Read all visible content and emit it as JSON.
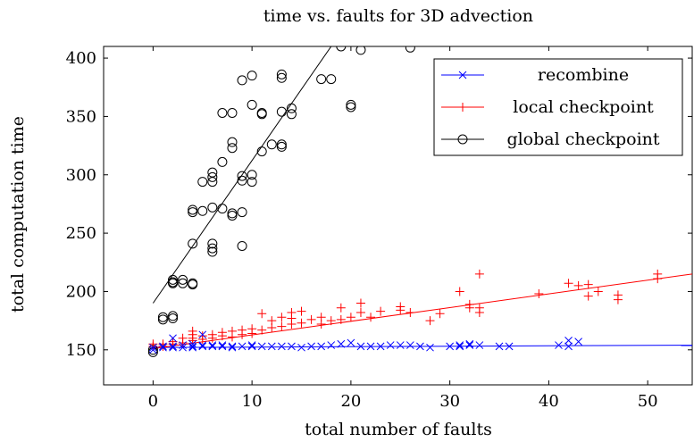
{
  "chart_data": {
    "type": "scatter",
    "title": "time vs. faults for 3D advection",
    "xlabel": "total number of faults",
    "ylabel": "total computation time",
    "xlim": [
      -5,
      54.5
    ],
    "ylim": [
      120,
      410
    ],
    "xticks": [
      0,
      10,
      20,
      30,
      40,
      50
    ],
    "yticks": [
      150,
      200,
      250,
      300,
      350,
      400
    ],
    "grid": false,
    "legend_position": "top-right",
    "series": [
      {
        "name": "recombine",
        "marker": "x",
        "color": "#0000ff",
        "points": [
          [
            0,
            152
          ],
          [
            0,
            150
          ],
          [
            1,
            153
          ],
          [
            1,
            152
          ],
          [
            2,
            160
          ],
          [
            2,
            153
          ],
          [
            2,
            152
          ],
          [
            3,
            154
          ],
          [
            3,
            152
          ],
          [
            4,
            155
          ],
          [
            4,
            153
          ],
          [
            4,
            152
          ],
          [
            5,
            163
          ],
          [
            5,
            154
          ],
          [
            5,
            153
          ],
          [
            6,
            154
          ],
          [
            6,
            153
          ],
          [
            7,
            154
          ],
          [
            7,
            153
          ],
          [
            8,
            153
          ],
          [
            8,
            152
          ],
          [
            9,
            153
          ],
          [
            10,
            154
          ],
          [
            10,
            153
          ],
          [
            11,
            153
          ],
          [
            12,
            153
          ],
          [
            13,
            153
          ],
          [
            14,
            153
          ],
          [
            15,
            152
          ],
          [
            16,
            153
          ],
          [
            17,
            153
          ],
          [
            18,
            154
          ],
          [
            19,
            155
          ],
          [
            20,
            156
          ],
          [
            21,
            153
          ],
          [
            22,
            153
          ],
          [
            23,
            153
          ],
          [
            24,
            154
          ],
          [
            25,
            154
          ],
          [
            26,
            154
          ],
          [
            27,
            153
          ],
          [
            28,
            152
          ],
          [
            30,
            153
          ],
          [
            31,
            154
          ],
          [
            31,
            153
          ],
          [
            32,
            155
          ],
          [
            32,
            154
          ],
          [
            33,
            154
          ],
          [
            35,
            153
          ],
          [
            36,
            153
          ],
          [
            41,
            154
          ],
          [
            42,
            158
          ],
          [
            42,
            153
          ],
          [
            43,
            157
          ]
        ],
        "trend": [
          [
            0,
            152
          ],
          [
            54.5,
            154
          ]
        ]
      },
      {
        "name": "local checkpoint",
        "marker": "+",
        "color": "#ff0000",
        "points": [
          [
            0,
            155
          ],
          [
            0,
            153
          ],
          [
            1,
            155
          ],
          [
            1,
            153
          ],
          [
            2,
            157
          ],
          [
            2,
            155
          ],
          [
            3,
            160
          ],
          [
            3,
            156
          ],
          [
            4,
            166
          ],
          [
            4,
            163
          ],
          [
            4,
            160
          ],
          [
            4,
            158
          ],
          [
            5,
            162
          ],
          [
            5,
            159
          ],
          [
            6,
            163
          ],
          [
            6,
            160
          ],
          [
            7,
            165
          ],
          [
            7,
            162
          ],
          [
            8,
            166
          ],
          [
            8,
            161
          ],
          [
            9,
            167
          ],
          [
            9,
            163
          ],
          [
            10,
            168
          ],
          [
            10,
            164
          ],
          [
            11,
            181
          ],
          [
            11,
            167
          ],
          [
            12,
            169
          ],
          [
            12,
            175
          ],
          [
            13,
            178
          ],
          [
            13,
            170
          ],
          [
            14,
            182
          ],
          [
            14,
            177
          ],
          [
            14,
            172
          ],
          [
            15,
            183
          ],
          [
            15,
            173
          ],
          [
            16,
            176
          ],
          [
            17,
            178
          ],
          [
            17,
            172
          ],
          [
            18,
            175
          ],
          [
            19,
            186
          ],
          [
            19,
            176
          ],
          [
            20,
            178
          ],
          [
            21,
            190
          ],
          [
            21,
            182
          ],
          [
            22,
            178
          ],
          [
            23,
            183
          ],
          [
            25,
            187
          ],
          [
            25,
            184
          ],
          [
            26,
            182
          ],
          [
            28,
            175
          ],
          [
            29,
            181
          ],
          [
            31,
            200
          ],
          [
            32,
            189
          ],
          [
            32,
            186
          ],
          [
            33,
            215
          ],
          [
            33,
            186
          ],
          [
            33,
            182
          ],
          [
            39,
            198
          ],
          [
            42,
            207
          ],
          [
            43,
            205
          ],
          [
            44,
            206
          ],
          [
            44,
            196
          ],
          [
            45,
            200
          ],
          [
            47,
            197
          ],
          [
            47,
            193
          ],
          [
            51,
            215
          ],
          [
            51,
            211
          ]
        ],
        "trend": [
          [
            0,
            151
          ],
          [
            54.5,
            215
          ]
        ]
      },
      {
        "name": "global checkpoint",
        "marker": "circle",
        "color": "#000000",
        "points": [
          [
            0,
            150
          ],
          [
            0,
            148
          ],
          [
            1,
            178
          ],
          [
            1,
            176
          ],
          [
            2,
            210
          ],
          [
            2,
            208
          ],
          [
            2,
            207
          ],
          [
            2,
            179
          ],
          [
            2,
            177
          ],
          [
            3,
            210
          ],
          [
            3,
            207
          ],
          [
            4,
            270
          ],
          [
            4,
            268
          ],
          [
            4,
            241
          ],
          [
            4,
            207
          ],
          [
            4,
            206
          ],
          [
            5,
            294
          ],
          [
            5,
            269
          ],
          [
            6,
            302
          ],
          [
            6,
            298
          ],
          [
            6,
            294
          ],
          [
            6,
            272
          ],
          [
            6,
            241
          ],
          [
            6,
            237
          ],
          [
            6,
            234
          ],
          [
            7,
            353
          ],
          [
            7,
            311
          ],
          [
            7,
            271
          ],
          [
            8,
            353
          ],
          [
            8,
            328
          ],
          [
            8,
            323
          ],
          [
            8,
            267
          ],
          [
            8,
            265
          ],
          [
            9,
            381
          ],
          [
            9,
            299
          ],
          [
            9,
            295
          ],
          [
            9,
            268
          ],
          [
            9,
            239
          ],
          [
            10,
            385
          ],
          [
            10,
            360
          ],
          [
            10,
            300
          ],
          [
            10,
            294
          ],
          [
            11,
            353
          ],
          [
            11,
            352
          ],
          [
            11,
            320
          ],
          [
            12,
            326
          ],
          [
            13,
            386
          ],
          [
            13,
            383
          ],
          [
            13,
            354
          ],
          [
            13,
            326
          ],
          [
            13,
            324
          ],
          [
            14,
            357
          ],
          [
            14,
            352
          ],
          [
            17,
            382
          ],
          [
            18,
            382
          ],
          [
            19,
            410
          ],
          [
            20,
            360
          ],
          [
            20,
            358
          ],
          [
            21,
            407
          ],
          [
            26,
            409
          ]
        ],
        "trend": [
          [
            0,
            190
          ],
          [
            18,
            410
          ]
        ]
      }
    ]
  }
}
